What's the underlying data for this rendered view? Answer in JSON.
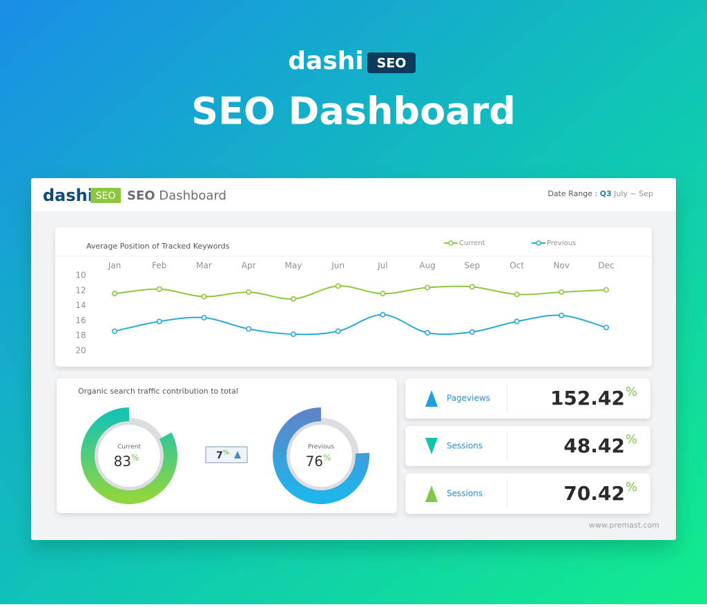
{
  "header": {
    "logo": "dashi",
    "badge": "SEO",
    "title": "SEO Dashboard"
  },
  "panel": {
    "logo": "dashi",
    "badge": "SEO",
    "title_bold": "SEO",
    "title_rest": "Dashboard",
    "date_label": "Date Range :",
    "date_quarter": "Q3",
    "date_range": "July ~ Sep",
    "footer": "www.premast.com"
  },
  "chart_data": [
    {
      "type": "line",
      "title": "Average Position of Tracked Keywords",
      "categories": [
        "Jan",
        "Feb",
        "Mar",
        "Apr",
        "May",
        "Jun",
        "Jul",
        "Aug",
        "Sep",
        "Oct",
        "Nov",
        "Dec"
      ],
      "series": [
        {
          "name": "Current",
          "color": "#8dc63f",
          "values": [
            12.4,
            11.8,
            12.8,
            12.2,
            13.1,
            11.4,
            12.4,
            11.6,
            11.5,
            12.5,
            12.2,
            11.9
          ]
        },
        {
          "name": "Previous",
          "color": "#29a9d6",
          "values": [
            17.4,
            16.1,
            15.6,
            17.1,
            17.8,
            17.4,
            15.2,
            17.6,
            17.5,
            16.1,
            15.3,
            16.9
          ]
        }
      ],
      "ylim": [
        10,
        20
      ],
      "yticks": [
        10,
        12,
        14,
        16,
        18,
        20
      ],
      "y_reversed": true
    },
    {
      "type": "donut",
      "title": "Organic search traffic contribution to total",
      "unit": "%",
      "series": [
        {
          "name": "Current",
          "value": 83,
          "colors": [
            "#17c3b2",
            "#8dd63f"
          ]
        },
        {
          "name": "Previous",
          "value": 76,
          "colors": [
            "#5b86c9",
            "#1fb5ec"
          ]
        }
      ],
      "change": 7,
      "change_trend": "up"
    }
  ],
  "kpis": [
    {
      "label": "Pageviews",
      "value": 152.42,
      "unit": "%",
      "trend": "up",
      "color": "#1d9fe0"
    },
    {
      "label": "Sessions",
      "value": 48.42,
      "unit": "%",
      "trend": "down",
      "color": "#16c2b0"
    },
    {
      "label": "Sessions",
      "value": 70.42,
      "unit": "%",
      "trend": "up",
      "color": "#7cc84a"
    }
  ]
}
